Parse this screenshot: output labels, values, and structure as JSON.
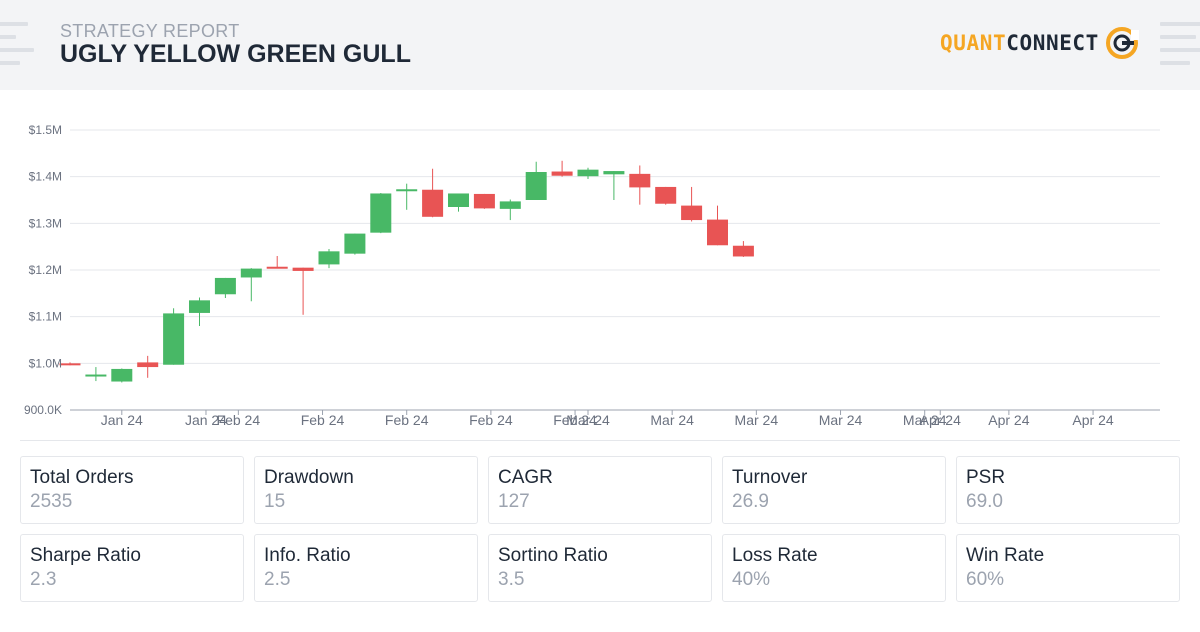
{
  "header": {
    "eyebrow": "STRATEGY REPORT",
    "title": "UGLY YELLOW GREEN GULL",
    "brand_a": "QUANT",
    "brand_b": "CONNECT"
  },
  "colors": {
    "up": "#48b866",
    "down": "#e85454",
    "grid": "#e5e7eb",
    "axis": "#9ca3af",
    "brand_orange": "#f5a623"
  },
  "chart_data": {
    "type": "candlestick",
    "ylim": [
      900000,
      1500000
    ],
    "y_ticks": [
      {
        "value": 1500000,
        "label": "$1.5M"
      },
      {
        "value": 1400000,
        "label": "$1.4M"
      },
      {
        "value": 1300000,
        "label": "$1.3M"
      },
      {
        "value": 1200000,
        "label": "$1.2M"
      },
      {
        "value": 1100000,
        "label": "$1.1M"
      },
      {
        "value": 1000000,
        "label": "$1.0M"
      },
      {
        "value": 900000,
        "label": "900.0K"
      }
    ],
    "x_ticks": [
      {
        "index": 2,
        "label": "Jan 24"
      },
      {
        "index": 5.25,
        "label": "Jan 24"
      },
      {
        "index": 6.5,
        "label": "Feb 24"
      },
      {
        "index": 9.75,
        "label": "Feb 24"
      },
      {
        "index": 13,
        "label": "Feb 24"
      },
      {
        "index": 16.25,
        "label": "Feb 24"
      },
      {
        "index": 19.5,
        "label": "Feb 24"
      },
      {
        "index": 20,
        "label": "Mar 24"
      },
      {
        "index": 23.25,
        "label": "Mar 24"
      },
      {
        "index": 26.5,
        "label": "Mar 24"
      },
      {
        "index": 29.75,
        "label": "Mar 24"
      },
      {
        "index": 33,
        "label": "Mar 24"
      },
      {
        "index": 33.6,
        "label": "Apr 24"
      },
      {
        "index": 36.25,
        "label": "Apr 24"
      },
      {
        "index": 39.5,
        "label": "Apr 24"
      }
    ],
    "candles": [
      {
        "o": 1000000,
        "h": 1002000,
        "l": 996000,
        "c": 997000
      },
      {
        "o": 973000,
        "h": 992000,
        "l": 962000,
        "c": 976000
      },
      {
        "o": 961000,
        "h": 989000,
        "l": 959000,
        "c": 988000
      },
      {
        "o": 1002000,
        "h": 1016000,
        "l": 969000,
        "c": 992000
      },
      {
        "o": 997000,
        "h": 1118000,
        "l": 997000,
        "c": 1107000
      },
      {
        "o": 1108000,
        "h": 1141000,
        "l": 1080000,
        "c": 1135000
      },
      {
        "o": 1148000,
        "h": 1183000,
        "l": 1140000,
        "c": 1183000
      },
      {
        "o": 1184000,
        "h": 1204000,
        "l": 1133000,
        "c": 1203000
      },
      {
        "o": 1207000,
        "h": 1230000,
        "l": 1204000,
        "c": 1205000
      },
      {
        "o": 1205000,
        "h": 1205000,
        "l": 1104000,
        "c": 1198000
      },
      {
        "o": 1212000,
        "h": 1245000,
        "l": 1204000,
        "c": 1240000
      },
      {
        "o": 1235000,
        "h": 1278000,
        "l": 1233000,
        "c": 1278000
      },
      {
        "o": 1280000,
        "h": 1365000,
        "l": 1279000,
        "c": 1364000
      },
      {
        "o": 1370000,
        "h": 1385000,
        "l": 1329000,
        "c": 1373000
      },
      {
        "o": 1372000,
        "h": 1417000,
        "l": 1313000,
        "c": 1314000
      },
      {
        "o": 1335000,
        "h": 1364000,
        "l": 1325000,
        "c": 1364000
      },
      {
        "o": 1363000,
        "h": 1363000,
        "l": 1331000,
        "c": 1332000
      },
      {
        "o": 1331000,
        "h": 1351000,
        "l": 1307000,
        "c": 1347000
      },
      {
        "o": 1350000,
        "h": 1432000,
        "l": 1350000,
        "c": 1410000
      },
      {
        "o": 1411000,
        "h": 1434000,
        "l": 1400000,
        "c": 1402000
      },
      {
        "o": 1401000,
        "h": 1419000,
        "l": 1395000,
        "c": 1415000
      },
      {
        "o": 1405000,
        "h": 1412000,
        "l": 1350000,
        "c": 1412000
      },
      {
        "o": 1406000,
        "h": 1424000,
        "l": 1340000,
        "c": 1377000
      },
      {
        "o": 1378000,
        "h": 1378000,
        "l": 1340000,
        "c": 1342000
      },
      {
        "o": 1338000,
        "h": 1378000,
        "l": 1304000,
        "c": 1307000
      },
      {
        "o": 1308000,
        "h": 1338000,
        "l": 1253000,
        "c": 1253000
      },
      {
        "o": 1252000,
        "h": 1262000,
        "l": 1228000,
        "c": 1229000
      }
    ]
  },
  "stats": [
    {
      "label": "Total Orders",
      "value": "2535"
    },
    {
      "label": "Drawdown",
      "value": "15"
    },
    {
      "label": "CAGR",
      "value": "127"
    },
    {
      "label": "Turnover",
      "value": "26.9"
    },
    {
      "label": "PSR",
      "value": "69.0"
    },
    {
      "label": "Sharpe Ratio",
      "value": "2.3"
    },
    {
      "label": "Info. Ratio",
      "value": "2.5"
    },
    {
      "label": "Sortino Ratio",
      "value": "3.5"
    },
    {
      "label": "Loss Rate",
      "value": "40%"
    },
    {
      "label": "Win Rate",
      "value": "60%"
    }
  ]
}
